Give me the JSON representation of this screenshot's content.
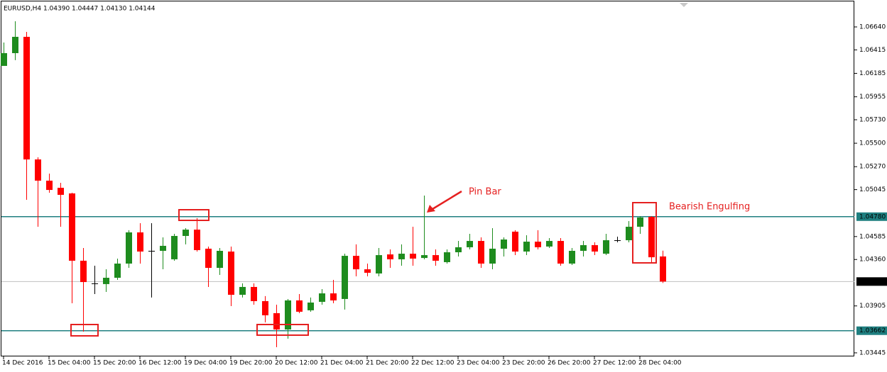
{
  "chart_data": {
    "type": "candlestick",
    "title": "EURUSD,H4  1.04390 1.04447 1.04130 1.04144",
    "x": [
      "14 Dec 2016",
      null,
      null,
      null,
      "15 Dec 04:00",
      null,
      null,
      null,
      "15 Dec 20:00",
      null,
      null,
      null,
      "16 Dec 12:00",
      null,
      null,
      null,
      "19 Dec 04:00",
      null,
      null,
      null,
      "19 Dec 20:00",
      null,
      null,
      null,
      "20 Dec 12:00",
      null,
      null,
      null,
      "21 Dec 04:00",
      null,
      null,
      null,
      "21 Dec 20:00",
      null,
      null,
      null,
      "22 Dec 12:00",
      null,
      null,
      null,
      "23 Dec 04:00",
      null,
      null,
      null,
      "23 Dec 20:00",
      null,
      null,
      null,
      "26 Dec 20:00",
      null,
      null,
      null,
      "27 Dec 12:00",
      null,
      null,
      null,
      "28 Dec 04:00",
      null,
      null
    ],
    "open": [
      1.06258,
      1.06383,
      1.06543,
      1.05341,
      1.05133,
      1.05063,
      1.05008,
      1.04348,
      1.04126,
      1.04119,
      1.04181,
      1.0432,
      1.04626,
      1.04445,
      1.04445,
      1.04362,
      1.04591,
      1.04653,
      1.04466,
      1.04278,
      1.04438,
      1.04014,
      1.04091,
      1.03952,
      1.03834,
      1.03674,
      1.03959,
      1.03862,
      1.03945,
      1.04028,
      1.03973,
      1.04396,
      1.04264,
      1.04223,
      1.0441,
      1.04362,
      1.04417,
      1.04375,
      1.04403,
      1.04334,
      1.04431,
      1.0448,
      1.04542,
      1.0432,
      1.04466,
      1.04633,
      1.04438,
      1.04535,
      1.04487,
      1.04542,
      1.0432,
      1.04445,
      1.04501,
      1.04417,
      1.04549,
      1.04549,
      1.04681,
      1.04778,
      1.0439
    ],
    "high": [
      1.06487,
      1.06696,
      1.06591,
      1.05362,
      1.05202,
      1.05112,
      1.05015,
      1.04473,
      1.04299,
      1.04264,
      1.04369,
      1.04647,
      1.04716,
      1.04716,
      1.04577,
      1.04612,
      1.04667,
      1.04765,
      1.04487,
      1.04473,
      1.04487,
      1.04126,
      1.04126,
      1.04001,
      1.03917,
      1.03973,
      1.04021,
      1.03987,
      1.0407,
      1.0416,
      1.04417,
      1.04508,
      1.0432,
      1.04473,
      1.04459,
      1.04508,
      1.04681,
      1.04987,
      1.04459,
      1.04459,
      1.04542,
      1.04612,
      1.04577,
      1.04667,
      1.04577,
      1.04647,
      1.04598,
      1.04647,
      1.0457,
      1.0457,
      1.04473,
      1.04542,
      1.04528,
      1.04612,
      1.04584,
      1.04737,
      1.04785,
      1.04785,
      1.04447
    ],
    "low": [
      1.06258,
      1.06314,
      1.04945,
      1.04681,
      1.05015,
      1.04681,
      1.03931,
      1.03653,
      1.04021,
      1.04042,
      1.0416,
      1.04278,
      1.0432,
      1.03987,
      1.04264,
      1.04348,
      1.04508,
      1.04438,
      1.04091,
      1.04209,
      1.03903,
      1.03987,
      1.03917,
      1.03743,
      1.035,
      1.03584,
      1.03834,
      1.03848,
      1.03917,
      1.03931,
      1.03869,
      1.04195,
      1.04195,
      1.04195,
      1.04278,
      1.04299,
      1.04299,
      1.04362,
      1.04299,
      1.0432,
      1.04389,
      1.04459,
      1.04278,
      1.04264,
      1.04389,
      1.04403,
      1.04403,
      1.04459,
      1.04473,
      1.04299,
      1.04306,
      1.04389,
      1.04403,
      1.04403,
      1.04528,
      1.04528,
      1.04612,
      1.04334,
      1.0413
    ],
    "close": [
      1.06383,
      1.06543,
      1.05341,
      1.05133,
      1.05042,
      1.04994,
      1.04348,
      1.04139,
      1.04126,
      1.04181,
      1.0432,
      1.04626,
      1.04438,
      1.04445,
      1.04494,
      1.04591,
      1.04653,
      1.04452,
      1.04278,
      1.04445,
      1.04014,
      1.04091,
      1.03952,
      1.03813,
      1.03674,
      1.03959,
      1.03848,
      1.03938,
      1.04028,
      1.03959,
      1.04396,
      1.04264,
      1.0423,
      1.04403,
      1.04362,
      1.04417,
      1.04369,
      1.04403,
      1.04348,
      1.04431,
      1.0448,
      1.04542,
      1.0432,
      1.04466,
      1.04556,
      1.04438,
      1.04535,
      1.0448,
      1.04542,
      1.0432,
      1.04445,
      1.04501,
      1.04438,
      1.04549,
      1.04549,
      1.04681,
      1.04772,
      1.04382,
      1.04144
    ],
    "up_color": "#1e8c1e",
    "down_color": "#ff0000",
    "doji_color": "#000000",
    "ylim": [
      1.0341,
      1.06904
    ],
    "yticks": [
      {
        "value": 1.0664,
        "label": "1.06640"
      },
      {
        "value": 1.06415,
        "label": "1.06415"
      },
      {
        "value": 1.06185,
        "label": "1.06185"
      },
      {
        "value": 1.05955,
        "label": "1.05955"
      },
      {
        "value": 1.0573,
        "label": "1.05730"
      },
      {
        "value": 1.055,
        "label": "1.05500"
      },
      {
        "value": 1.0527,
        "label": "1.05270"
      },
      {
        "value": 1.05045,
        "label": "1.05045"
      },
      {
        "value": 1.04585,
        "label": "1.04585"
      },
      {
        "value": 1.0436,
        "label": "1.04360"
      },
      {
        "value": 1.03905,
        "label": "1.03905"
      },
      {
        "value": 1.03445,
        "label": "1.03445"
      }
    ],
    "price_lines": [
      {
        "value": 1.0478,
        "label": "1.04780",
        "color": "#1f7f80"
      },
      {
        "value": 1.03662,
        "label": "1.03662",
        "color": "#1f7f80"
      }
    ],
    "last_price": {
      "value": 1.04144,
      "label": "1.04144",
      "color": "#c0c0c0"
    },
    "annotations": [
      {
        "text": "Pin Bar"
      },
      {
        "text": "Bearish Engulfing"
      }
    ]
  }
}
